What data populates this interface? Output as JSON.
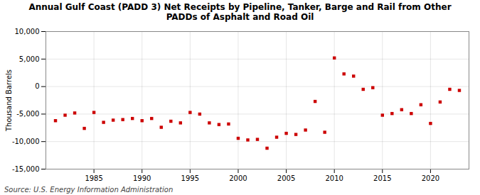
{
  "chart_data": {
    "type": "scatter",
    "title": "Annual Gulf Coast (PADD 3) Net Receipts by Pipeline, Tanker, Barge and Rail from Other\nPADDs of Asphalt and Road Oil",
    "ylabel": "Thousand Barrels",
    "source": "Source: U.S. Energy Information Administration",
    "x": [
      1981,
      1982,
      1983,
      1984,
      1985,
      1986,
      1987,
      1988,
      1989,
      1990,
      1991,
      1992,
      1993,
      1994,
      1995,
      1996,
      1997,
      1998,
      1999,
      2000,
      2001,
      2002,
      2003,
      2004,
      2005,
      2006,
      2007,
      2008,
      2009,
      2010,
      2011,
      2012,
      2013,
      2014,
      2015,
      2016,
      2017,
      2018,
      2019,
      2020,
      2021,
      2022,
      2023
    ],
    "values": [
      -6200,
      -5200,
      -4800,
      -7600,
      -4700,
      -6500,
      -6100,
      -6000,
      -5800,
      -6200,
      -5800,
      -7400,
      -6300,
      -6600,
      -4700,
      -5000,
      -6600,
      -6900,
      -6800,
      -9400,
      -9700,
      -9600,
      -11200,
      -9200,
      -8500,
      -8700,
      -7900,
      -2700,
      -8300,
      5200,
      2300,
      1900,
      -500,
      -200,
      -5200,
      -4900,
      -4200,
      -4900,
      -3300,
      -6700,
      -2800,
      -500,
      -700
    ],
    "color": "#cc0000",
    "marker": "square",
    "xlim": [
      1980,
      2024
    ],
    "xticks": [
      1985,
      1990,
      1995,
      2000,
      2005,
      2010,
      2015,
      2020
    ],
    "ylim": [
      -15000,
      10000
    ],
    "yticks": [
      {
        "value": -15000,
        "label": "-15,000"
      },
      {
        "value": -10000,
        "label": "-10,000"
      },
      {
        "value": -5000,
        "label": "-5,000"
      },
      0,
      {
        "value": 5000,
        "label": "5,000"
      },
      {
        "value": 10000,
        "label": "10,000"
      }
    ],
    "grid": true
  }
}
